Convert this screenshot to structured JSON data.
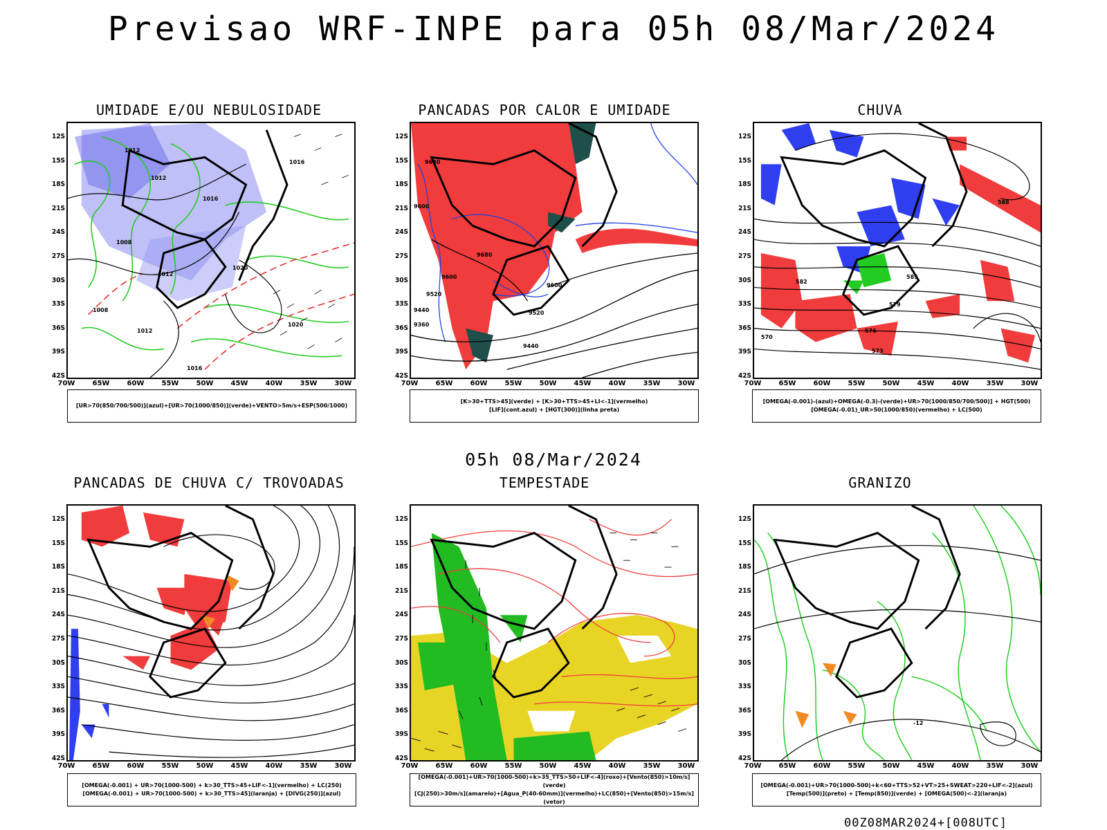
{
  "title": "Previsao WRF-INPE  para 05h 08/Mar/2024",
  "subtitle": "05h 08/Mar/2024",
  "footer": "00Z08MAR2024+[008UTC]",
  "lat_ticks": [
    "12S",
    "15S",
    "18S",
    "21S",
    "24S",
    "27S",
    "30S",
    "33S",
    "36S",
    "39S",
    "42S"
  ],
  "lon_ticks": [
    "70W",
    "65W",
    "60W",
    "55W",
    "50W",
    "45W",
    "40W",
    "35W",
    "30W"
  ],
  "panels": [
    {
      "title": "UMIDADE E/OU NEBULOSIDADE",
      "legend": [
        "[UR>70(850/700/500)](azul)+[UR>70(1000/850)](verde)+VENTO>5m/s+ESP(500/1000)"
      ]
    },
    {
      "title": "PANCADAS POR CALOR E UMIDADE",
      "legend": [
        "[K>30+TTS>45](verde) + [K>30+TTS>45+LI<-1](vermelho)",
        "[LIF](cont.azul) + [HGT(300)](linha preta)"
      ]
    },
    {
      "title": "CHUVA",
      "legend": [
        "[OMEGA(-0.001)-(azul)+OMEGA(-0.3)-(verde)+UR>70(1000/850/700/500)] + HGT(500)",
        "[OMEGA(-0.01)_UR>50(1000/850)(vermelho) + LC(500)"
      ]
    },
    {
      "title": "PANCADAS DE CHUVA C/ TROVOADAS",
      "legend": [
        "[OMEGA(-0.001) + UR>70(1000-500) + k>30_TTS>45+LIF<-1](vermelho) + LC(250)",
        "[OMEGA(-0.001) + UR>70(1000-500) + k>30_TTS>45](laranja) + [DIVG(250)](azul)"
      ]
    },
    {
      "title": "TEMPESTADE",
      "legend": [
        "[OMEGA(-0.001)+UR>70(1000-500)+k>35_TTS>50+LIF<-4](roxo)+[Vento(850)>10m/s](verde)",
        "[CJ(250)>30m/s](amarelo)+[Agua_P(40-60mm)](vermelho)+LC(850)+[Vento(850)>15m/s](vetor)"
      ]
    },
    {
      "title": "GRANIZO",
      "legend": [
        "[OMEGA(-0.001)+UR>70(1000-500)+k<60+TTS>52+VT>25+SWEAT>220+LIF<-2](azul)",
        "[Temp(500)](preto) + [Temp(850)](verde) + [OMEGA(500)<-2](laranja)"
      ]
    }
  ],
  "contour_labels": {
    "p1": [
      "1012",
      "1012",
      "1016",
      "1016",
      "1008",
      "1012",
      "1020",
      "1020",
      "1008",
      "1012",
      "1016"
    ],
    "p2": [
      "9680",
      "9600",
      "9680",
      "9600",
      "9520",
      "9440",
      "9360",
      "9600",
      "9520",
      "9440"
    ],
    "p3": [
      "588",
      "585",
      "582",
      "579",
      "576",
      "573",
      "570"
    ],
    "p6": [
      "-12"
    ]
  }
}
